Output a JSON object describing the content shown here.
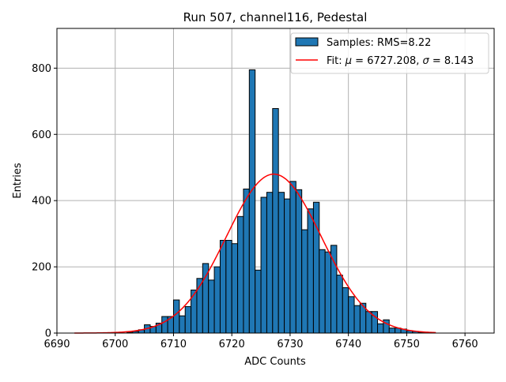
{
  "chart_data": {
    "type": "bar",
    "title": "Run 507, channel116, Pedestal",
    "xlabel": "ADC Counts",
    "ylabel": "Entries",
    "xlim": [
      6690,
      6765
    ],
    "ylim": [
      0,
      920
    ],
    "xticks": [
      6690,
      6700,
      6710,
      6720,
      6730,
      6740,
      6750,
      6760
    ],
    "yticks": [
      0,
      200,
      400,
      600,
      800
    ],
    "grid": true,
    "legend_position": "top-right",
    "bin_width": 1,
    "colors": {
      "bars": "#1f77b4",
      "bar_edge": "#000000",
      "fit": "#ff0000",
      "grid": "#b0b0b0"
    },
    "legend": {
      "samples_label": "Samples: RMS=8.22",
      "fit_label_prefix": "Fit: ",
      "fit_mu_symbol": "μ",
      "fit_mu_text": " = 6727.208, ",
      "fit_sigma_symbol": "σ",
      "fit_sigma_text": " = 8.143"
    },
    "histogram": {
      "bin_left_edges": [
        6702,
        6703,
        6704,
        6705,
        6706,
        6707,
        6708,
        6709,
        6710,
        6711,
        6712,
        6713,
        6714,
        6715,
        6716,
        6717,
        6718,
        6719,
        6720,
        6721,
        6722,
        6723,
        6724,
        6725,
        6726,
        6727,
        6728,
        6729,
        6730,
        6731,
        6732,
        6733,
        6734,
        6735,
        6736,
        6737,
        6738,
        6739,
        6740,
        6741,
        6742,
        6743,
        6744,
        6745,
        6746,
        6747,
        6748,
        6749,
        6750,
        6751,
        6752
      ],
      "counts": [
        2,
        5,
        10,
        25,
        20,
        30,
        50,
        50,
        100,
        52,
        80,
        130,
        165,
        210,
        160,
        200,
        280,
        280,
        270,
        352,
        435,
        795,
        190,
        410,
        425,
        678,
        425,
        405,
        458,
        433,
        312,
        375,
        395,
        252,
        245,
        265,
        175,
        137,
        110,
        83,
        90,
        65,
        65,
        28,
        40,
        15,
        15,
        12,
        7,
        5,
        2
      ]
    },
    "fit": {
      "type": "gaussian",
      "mu": 6727.208,
      "sigma": 8.143,
      "amplitude": 480,
      "x_range": [
        6693,
        6755
      ]
    }
  }
}
